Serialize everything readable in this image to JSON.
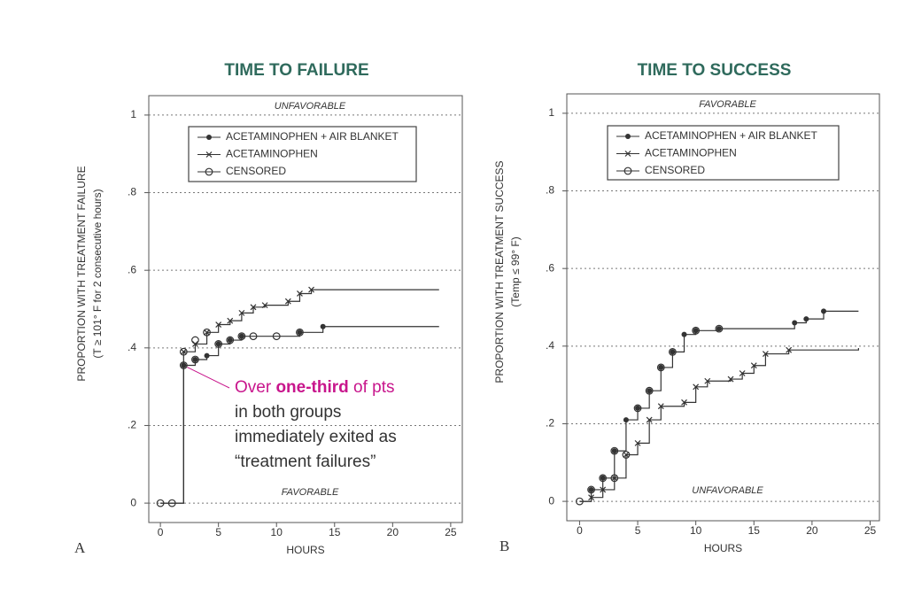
{
  "chart_data": [
    {
      "type": "line",
      "panel": "A",
      "title": "TIME TO FAILURE",
      "y_label": [
        "PROPORTION WITH TREATMENT FAILURE",
        "(T ≥ 101° F for 2 consecutive hours)"
      ],
      "x_label": "HOURS",
      "top_note": "UNFAVORABLE",
      "bottom_note": "FAVORABLE",
      "xlim": [
        -1,
        26
      ],
      "xticks": [
        0,
        5,
        10,
        15,
        20,
        25
      ],
      "ylim": [
        -0.05,
        1.05
      ],
      "yticks": [
        0,
        {
          "value": 0.2,
          "label": ".2"
        },
        {
          "value": 0.4,
          "label": ".4"
        },
        {
          "value": 0.6,
          "label": ".6"
        },
        {
          "value": 0.8,
          "label": ".8"
        },
        1
      ],
      "grid": true,
      "series": [
        {
          "name": "ACETAMINOPHEN + AIR BLANKET",
          "color": "#333333",
          "marker": "dot",
          "step": true,
          "x": [
            0,
            2,
            3,
            4,
            5,
            6,
            7,
            12,
            14,
            24
          ],
          "values": [
            0,
            0.355,
            0.37,
            0.38,
            0.41,
            0.42,
            0.43,
            0.44,
            0.455,
            0.455
          ]
        },
        {
          "name": "ACETAMINOPHEN",
          "color": "#333333",
          "marker": "x",
          "step": true,
          "x": [
            0,
            2,
            3,
            4,
            5,
            6,
            7,
            8,
            9,
            11,
            12,
            13,
            24
          ],
          "values": [
            0,
            0.39,
            0.41,
            0.44,
            0.46,
            0.47,
            0.49,
            0.505,
            0.51,
            0.52,
            0.54,
            0.55,
            0.55
          ]
        },
        {
          "name": "CENSORED",
          "color": "#333333",
          "marker": "circle",
          "step": false,
          "x": [
            0,
            1,
            2,
            2,
            3,
            3,
            4,
            5,
            6,
            7,
            8,
            10,
            12
          ],
          "values": [
            0,
            0,
            0.355,
            0.39,
            0.37,
            0.42,
            0.44,
            0.41,
            0.42,
            0.43,
            0.43,
            0.43,
            0.44
          ]
        }
      ],
      "callout": {
        "first_line": [
          "Over ",
          "one-third",
          " of pts"
        ],
        "lines": [
          "in both groups",
          "immediately exited as",
          "“treatment failures”"
        ],
        "color": "#c8158c"
      }
    },
    {
      "type": "line",
      "panel": "B",
      "title": "TIME TO SUCCESS",
      "y_label": [
        "PROPORTION WITH TREATMENT SUCCESS",
        "(Temp ≤ 99° F)"
      ],
      "x_label": "HOURS",
      "top_note": "FAVORABLE",
      "bottom_note": "UNFAVORABLE",
      "xlim": [
        -1.1,
        25.8
      ],
      "xticks": [
        0,
        5,
        10,
        15,
        20,
        25
      ],
      "ylim": [
        -0.05,
        1.05
      ],
      "yticks": [
        0,
        {
          "value": 0.2,
          "label": ".2"
        },
        {
          "value": 0.4,
          "label": ".4"
        },
        {
          "value": 0.6,
          "label": ".6"
        },
        {
          "value": 0.8,
          "label": ".8"
        },
        1
      ],
      "grid": true,
      "series": [
        {
          "name": "ACETAMINOPHEN + AIR BLANKET",
          "color": "#333333",
          "marker": "dot",
          "step": true,
          "x": [
            0,
            1,
            2,
            3,
            4,
            5,
            6,
            7,
            8,
            9,
            10,
            12,
            18.5,
            19.5,
            21,
            24
          ],
          "values": [
            0,
            0.03,
            0.06,
            0.13,
            0.21,
            0.24,
            0.285,
            0.345,
            0.385,
            0.43,
            0.44,
            0.445,
            0.46,
            0.47,
            0.49,
            0.49
          ]
        },
        {
          "name": "ACETAMINOPHEN",
          "color": "#333333",
          "marker": "x",
          "step": true,
          "x": [
            0,
            1,
            2,
            3,
            4,
            5,
            6,
            7,
            9,
            10,
            11,
            13,
            14,
            15,
            16,
            18,
            24
          ],
          "values": [
            0,
            0.01,
            0.03,
            0.06,
            0.12,
            0.15,
            0.21,
            0.245,
            0.255,
            0.295,
            0.31,
            0.315,
            0.33,
            0.35,
            0.38,
            0.39,
            0.395
          ]
        },
        {
          "name": "CENSORED",
          "color": "#333333",
          "marker": "circle",
          "step": false,
          "x": [
            0,
            1,
            2,
            3,
            3,
            4,
            5,
            6,
            7,
            8,
            10,
            12
          ],
          "values": [
            0,
            0.03,
            0.06,
            0.13,
            0.06,
            0.12,
            0.24,
            0.285,
            0.345,
            0.385,
            0.44,
            0.445
          ]
        }
      ]
    }
  ]
}
